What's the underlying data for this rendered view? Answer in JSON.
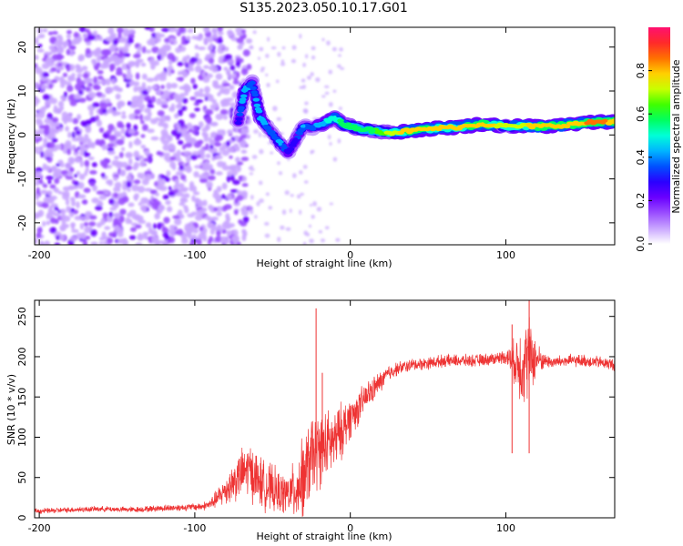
{
  "figure_title": "S135.2023.050.10.17.G01",
  "chart_data": [
    {
      "type": "heatmap",
      "title": "",
      "xlabel": "Height of straight line (km)",
      "ylabel": "Frequency (Hz)",
      "xlim": [
        -203,
        170
      ],
      "ylim": [
        -25,
        24.5
      ],
      "xticks": [
        -200,
        -100,
        0,
        100
      ],
      "yticks": [
        -20,
        -10,
        0,
        10,
        20
      ],
      "colorbar": {
        "label": "Normalized spectral amplitude",
        "range": [
          0,
          1
        ],
        "ticks": [
          "0.0",
          "0.2",
          "0.4",
          "0.6",
          "0.8"
        ],
        "tick_values": [
          0,
          0.2,
          0.4,
          0.6,
          0.8
        ],
        "colormap": [
          "#ffffff",
          "#c9a6ff",
          "#9a4dff",
          "#6a00ff",
          "#2b00ff",
          "#0050ff",
          "#00b4ff",
          "#00ffd8",
          "#00ff60",
          "#40ff00",
          "#c8ff00",
          "#ffd000",
          "#ff7000",
          "#ff2a2a",
          "#ff1070"
        ]
      },
      "noise_region": {
        "x_range": [
          -203,
          -65
        ],
        "freq_range": [
          -25,
          24.5
        ],
        "amplitude": "low (0.0-0.2)"
      },
      "signal_trace": [
        {
          "x": -72,
          "freq": 3,
          "amp": 0.3
        },
        {
          "x": -68,
          "freq": 10,
          "amp": 0.45
        },
        {
          "x": -63,
          "freq": 12,
          "amp": 0.35
        },
        {
          "x": -58,
          "freq": 4,
          "amp": 0.45
        },
        {
          "x": -52,
          "freq": 1,
          "amp": 0.35
        },
        {
          "x": -45,
          "freq": -2,
          "amp": 0.4
        },
        {
          "x": -40,
          "freq": -4,
          "amp": 0.3
        },
        {
          "x": -35,
          "freq": -1,
          "amp": 0.3
        },
        {
          "x": -30,
          "freq": 2,
          "amp": 0.4
        },
        {
          "x": -25,
          "freq": 1.5,
          "amp": 0.35
        },
        {
          "x": -18,
          "freq": 2.5,
          "amp": 0.45
        },
        {
          "x": -10,
          "freq": 4,
          "amp": 0.5
        },
        {
          "x": -5,
          "freq": 2.5,
          "amp": 0.55
        },
        {
          "x": 5,
          "freq": 1.5,
          "amp": 0.6
        },
        {
          "x": 15,
          "freq": 1,
          "amp": 0.6
        },
        {
          "x": 25,
          "freq": 0.5,
          "amp": 0.7
        },
        {
          "x": 40,
          "freq": 1,
          "amp": 0.8
        },
        {
          "x": 55,
          "freq": 1.5,
          "amp": 0.75
        },
        {
          "x": 70,
          "freq": 1.8,
          "amp": 0.75
        },
        {
          "x": 85,
          "freq": 2.5,
          "amp": 0.8
        },
        {
          "x": 100,
          "freq": 2,
          "amp": 0.7
        },
        {
          "x": 115,
          "freq": 2,
          "amp": 0.75
        },
        {
          "x": 130,
          "freq": 2,
          "amp": 0.8
        },
        {
          "x": 145,
          "freq": 2.5,
          "amp": 0.8
        },
        {
          "x": 160,
          "freq": 3,
          "amp": 0.85
        },
        {
          "x": 170,
          "freq": 3,
          "amp": 0.8
        }
      ]
    },
    {
      "type": "line",
      "title": "",
      "xlabel": "Height of straight line (km)",
      "ylabel": "SNR (10 * v/v)",
      "xlim": [
        -203,
        170
      ],
      "ylim": [
        0,
        270
      ],
      "xticks": [
        -200,
        -100,
        0,
        100
      ],
      "yticks": [
        0,
        50,
        100,
        150,
        200,
        250
      ],
      "series": [
        {
          "name": "SNR",
          "color": "#ee3333",
          "x": [
            -203,
            -190,
            -180,
            -160,
            -140,
            -120,
            -105,
            -95,
            -90,
            -85,
            -80,
            -75,
            -70,
            -65,
            -60,
            -55,
            -50,
            -45,
            -40,
            -35,
            -30,
            -25,
            -20,
            -15,
            -10,
            -5,
            0,
            5,
            10,
            15,
            20,
            25,
            30,
            40,
            50,
            60,
            70,
            80,
            90,
            100,
            105,
            110,
            115,
            120,
            125,
            130,
            140,
            150,
            160,
            170
          ],
          "y": [
            8,
            9,
            10,
            11,
            10,
            12,
            13,
            14,
            17,
            25,
            35,
            45,
            55,
            60,
            48,
            40,
            35,
            30,
            30,
            35,
            50,
            75,
            85,
            90,
            95,
            110,
            125,
            135,
            150,
            160,
            170,
            180,
            185,
            190,
            192,
            195,
            195,
            195,
            197,
            200,
            195,
            190,
            200,
            197,
            195,
            193,
            195,
            195,
            193,
            190
          ],
          "noise": [
            4,
            4,
            4,
            4,
            4,
            5,
            5,
            6,
            8,
            15,
            22,
            30,
            35,
            40,
            40,
            35,
            35,
            30,
            30,
            45,
            60,
            60,
            55,
            50,
            45,
            40,
            30,
            25,
            22,
            18,
            15,
            12,
            10,
            9,
            9,
            9,
            9,
            9,
            9,
            10,
            30,
            60,
            60,
            25,
            10,
            9,
            9,
            9,
            9,
            9
          ]
        }
      ],
      "spikes": [
        {
          "x": -22,
          "y": 260
        },
        {
          "x": -18,
          "y": 180
        },
        {
          "x": 104,
          "y": 240
        },
        {
          "x": 115,
          "y": 270
        }
      ]
    }
  ]
}
